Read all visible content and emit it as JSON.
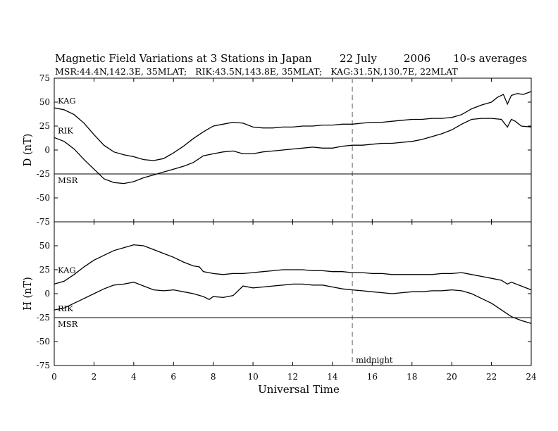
{
  "chart_data": {
    "type": "line",
    "title": "Magnetic Field Variations at 3 Stations in Japan",
    "date_day": "22 July",
    "date_year": "2006",
    "averaging": "10-s averages",
    "subtitle": "MSR:44.4N,142.3E, 35MLAT;   RIK:43.5N,143.8E, 35MLAT;   KAG:31.5N,130.7E, 22MLAT",
    "xlabel": "Universal Time",
    "xlim": [
      0,
      24
    ],
    "xticks": [
      "0",
      "2",
      "4",
      "6",
      "8",
      "10",
      "12",
      "14",
      "16",
      "18",
      "20",
      "22",
      "24"
    ],
    "midnight_ut": 15,
    "midnight_label": "midnight",
    "panels": [
      {
        "ylabel": "D (nT)",
        "ylim": [
          -75,
          75
        ],
        "yticks": [
          "75",
          "50",
          "25",
          "0",
          "-25",
          "-50",
          "-75"
        ],
        "series": [
          {
            "name": "KAG",
            "x": [
              0,
              0.5,
              1,
              1.5,
              2,
              2.5,
              3,
              3.5,
              4,
              4.5,
              5,
              5.5,
              6,
              6.5,
              7,
              7.5,
              8,
              8.5,
              9,
              9.5,
              10,
              10.5,
              11,
              11.5,
              12,
              12.5,
              13,
              13.5,
              14,
              14.5,
              15,
              15.5,
              16,
              16.5,
              17,
              17.5,
              18,
              18.5,
              19,
              19.5,
              20,
              20.5,
              21,
              21.5,
              22,
              22.3,
              22.6,
              22.8,
              23,
              23.3,
              23.6,
              24
            ],
            "values": [
              44,
              42,
              37,
              28,
              16,
              5,
              -2,
              -5,
              -7,
              -10,
              -11,
              -9,
              -3,
              4,
              12,
              19,
              25,
              27,
              29,
              28,
              24,
              23,
              23,
              24,
              24,
              25,
              25,
              26,
              26,
              27,
              27,
              28,
              29,
              29,
              30,
              31,
              32,
              32,
              33,
              33,
              34,
              37,
              43,
              47,
              50,
              55,
              58,
              48,
              57,
              59,
              58,
              61
            ]
          },
          {
            "name": "RIK",
            "x": [
              0,
              0.5,
              1,
              1.5,
              2,
              2.5,
              3,
              3.5,
              4,
              4.5,
              5,
              5.5,
              6,
              6.5,
              7,
              7.5,
              8,
              8.5,
              9,
              9.5,
              10,
              10.5,
              11,
              11.5,
              12,
              12.5,
              13,
              13.5,
              14,
              14.5,
              15,
              15.5,
              16,
              16.5,
              17,
              17.5,
              18,
              18.5,
              19,
              19.5,
              20,
              20.5,
              21,
              21.5,
              22,
              22.5,
              22.8,
              23,
              23.2,
              23.5,
              24
            ],
            "values": [
              13,
              9,
              1,
              -10,
              -20,
              -30,
              -34,
              -35,
              -33,
              -29,
              -26,
              -23,
              -20,
              -17,
              -13,
              -6,
              -4,
              -2,
              -1,
              -4,
              -4,
              -2,
              -1,
              0,
              1,
              2,
              3,
              2,
              2,
              4,
              5,
              5,
              6,
              7,
              7,
              8,
              9,
              11,
              14,
              17,
              21,
              27,
              32,
              33,
              33,
              32,
              24,
              32,
              30,
              25,
              24
            ]
          },
          {
            "name": "MSR",
            "x": [
              0,
              24
            ],
            "values": [
              -25,
              -25
            ]
          }
        ]
      },
      {
        "ylabel": "H (nT)",
        "ylim": [
          -75,
          75
        ],
        "yticks": [
          "75",
          "50",
          "25",
          "0",
          "-25",
          "-50",
          "-75"
        ],
        "series": [
          {
            "name": "KAG",
            "x": [
              0,
              0.5,
              1,
              1.5,
              2,
              2.5,
              3,
              3.5,
              4,
              4.5,
              5,
              5.5,
              6,
              6.5,
              7,
              7.3,
              7.5,
              8,
              8.5,
              9,
              9.5,
              10,
              10.5,
              11,
              11.5,
              12,
              12.5,
              13,
              13.5,
              14,
              14.5,
              15,
              15.5,
              16,
              16.5,
              17,
              17.5,
              18,
              18.5,
              19,
              19.5,
              20,
              20.5,
              21,
              21.5,
              22,
              22.5,
              22.8,
              23,
              23.5,
              24
            ],
            "values": [
              10,
              13,
              20,
              28,
              35,
              40,
              45,
              48,
              51,
              50,
              46,
              42,
              38,
              33,
              29,
              28,
              23,
              21,
              20,
              21,
              21,
              22,
              23,
              24,
              25,
              25,
              25,
              24,
              24,
              23,
              23,
              22,
              22,
              21,
              21,
              20,
              20,
              20,
              20,
              20,
              21,
              21,
              22,
              20,
              18,
              16,
              14,
              10,
              12,
              8,
              4
            ]
          },
          {
            "name": "RIK",
            "x": [
              0,
              0.5,
              1,
              1.5,
              2,
              2.5,
              3,
              3.5,
              4,
              4.5,
              5,
              5.5,
              6,
              6.5,
              7,
              7.5,
              7.8,
              8,
              8.5,
              9,
              9.5,
              10,
              10.5,
              11,
              11.5,
              12,
              12.5,
              13,
              13.5,
              14,
              14.5,
              15,
              15.5,
              16,
              16.5,
              17,
              17.5,
              18,
              18.5,
              19,
              19.5,
              20,
              20.5,
              21,
              21.5,
              22,
              22.5,
              23,
              23.5,
              24
            ],
            "values": [
              -17,
              -15,
              -10,
              -5,
              0,
              5,
              9,
              10,
              12,
              8,
              4,
              3,
              4,
              2,
              0,
              -3,
              -6,
              -3,
              -4,
              -2,
              8,
              6,
              7,
              8,
              9,
              10,
              10,
              9,
              9,
              7,
              5,
              4,
              3,
              2,
              1,
              0,
              1,
              2,
              2,
              3,
              3,
              4,
              3,
              0,
              -5,
              -10,
              -17,
              -24,
              -28,
              -31
            ]
          },
          {
            "name": "MSR",
            "x": [
              0,
              24
            ],
            "values": [
              -25,
              -25
            ]
          }
        ]
      }
    ]
  }
}
